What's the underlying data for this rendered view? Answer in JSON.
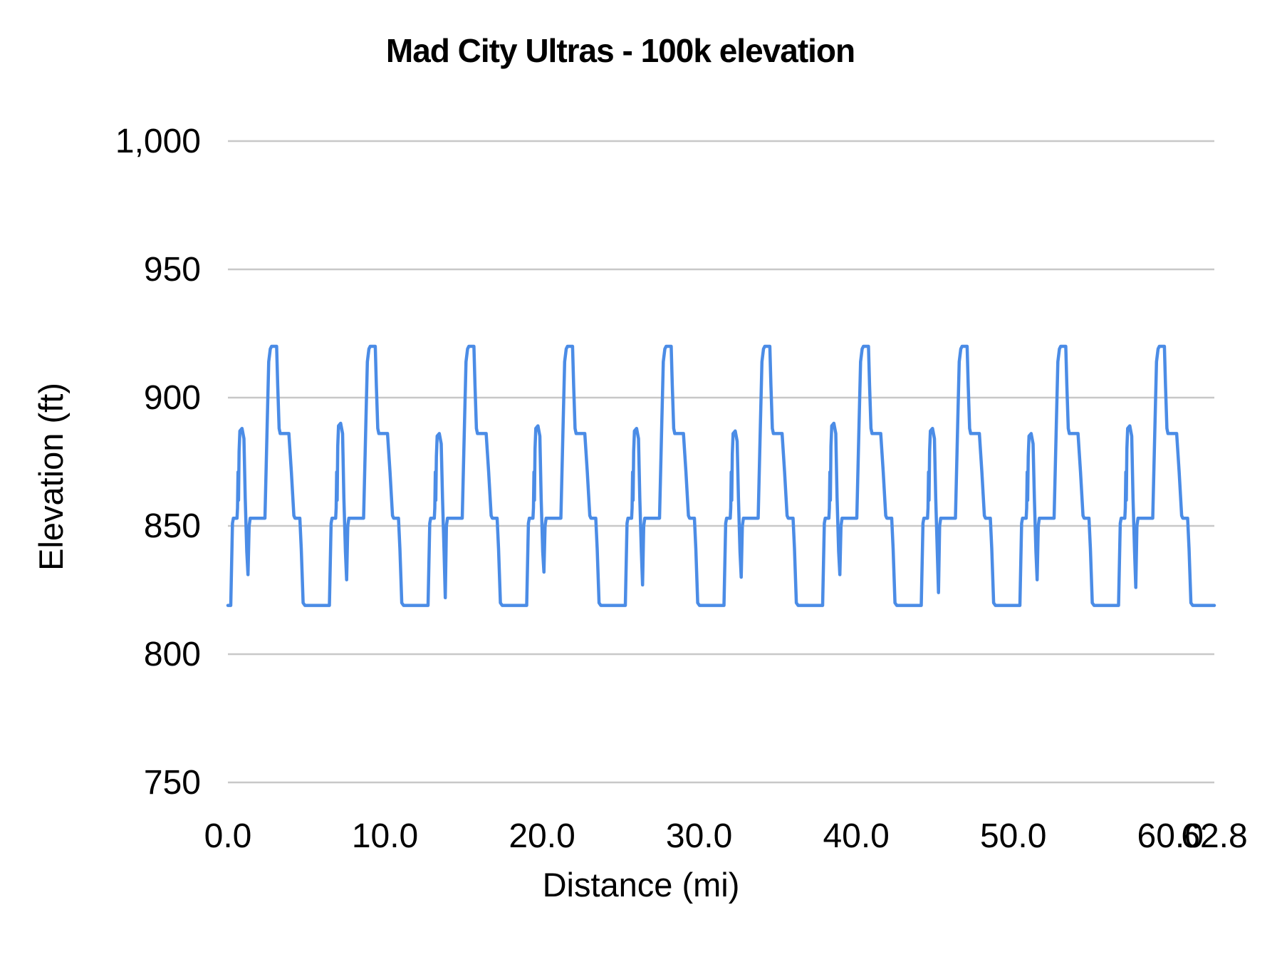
{
  "colors": {
    "line": "#4b8ce6",
    "grid": "#c8c8c8",
    "text": "#000000",
    "background": "#ffffff"
  },
  "chart_data": {
    "type": "line",
    "title": "Mad City Ultras - 100k elevation",
    "xlabel": "Distance (mi)",
    "ylabel": "Elevation (ft)",
    "xlim": [
      0,
      62.8
    ],
    "ylim": [
      750,
      1000
    ],
    "grid": {
      "horizontal": true,
      "vertical": false
    },
    "legend": "none",
    "x_ticks": {
      "values": [
        0,
        10,
        20,
        30,
        40,
        50,
        60,
        62.8
      ],
      "labels": [
        "0.0",
        "10.0",
        "20.0",
        "30.0",
        "40.0",
        "50.0",
        "60.0",
        "62.8"
      ]
    },
    "y_ticks": {
      "values": [
        750,
        800,
        850,
        900,
        950,
        1000
      ],
      "labels": [
        "750",
        "800",
        "850",
        "900",
        "950",
        "1,000"
      ]
    },
    "series": [
      {
        "name": "elevation",
        "structure": "repeated-laps",
        "laps": 10,
        "lap_length_mi": 6.28,
        "total_distance_mi": 62.8,
        "baseline_ft": 819,
        "peak_ft": 920,
        "lap_profile_mi_ft": [
          [
            0.0,
            819
          ],
          [
            0.18,
            819
          ],
          [
            0.29,
            851
          ],
          [
            0.35,
            853
          ],
          [
            0.58,
            853
          ],
          [
            0.61,
            857
          ],
          [
            0.645,
            871
          ],
          [
            0.675,
            860
          ],
          [
            0.71,
            879
          ],
          [
            0.76,
            887
          ],
          [
            0.9,
            888
          ],
          [
            1.02,
            884
          ],
          [
            1.1,
            861
          ],
          [
            1.2,
            840
          ],
          [
            1.28,
            831
          ],
          [
            1.35,
            850
          ],
          [
            1.42,
            853
          ],
          [
            2.36,
            853
          ],
          [
            2.5,
            889
          ],
          [
            2.6,
            914
          ],
          [
            2.7,
            919
          ],
          [
            2.78,
            920
          ],
          [
            3.1,
            920
          ],
          [
            3.17,
            905
          ],
          [
            3.26,
            888
          ],
          [
            3.33,
            886
          ],
          [
            3.88,
            886
          ],
          [
            4.04,
            871
          ],
          [
            4.2,
            854
          ],
          [
            4.27,
            853
          ],
          [
            4.58,
            853
          ],
          [
            4.67,
            841
          ],
          [
            4.79,
            820
          ],
          [
            4.9,
            819
          ]
        ],
        "v_dip_jitter_ft": [
          0,
          -2,
          -9,
          1,
          -4,
          -1,
          0,
          -7,
          -2,
          -5
        ],
        "spike_jitter_ft": [
          0,
          2,
          -2,
          1,
          0,
          -1,
          2,
          0,
          -2,
          1
        ]
      }
    ]
  }
}
